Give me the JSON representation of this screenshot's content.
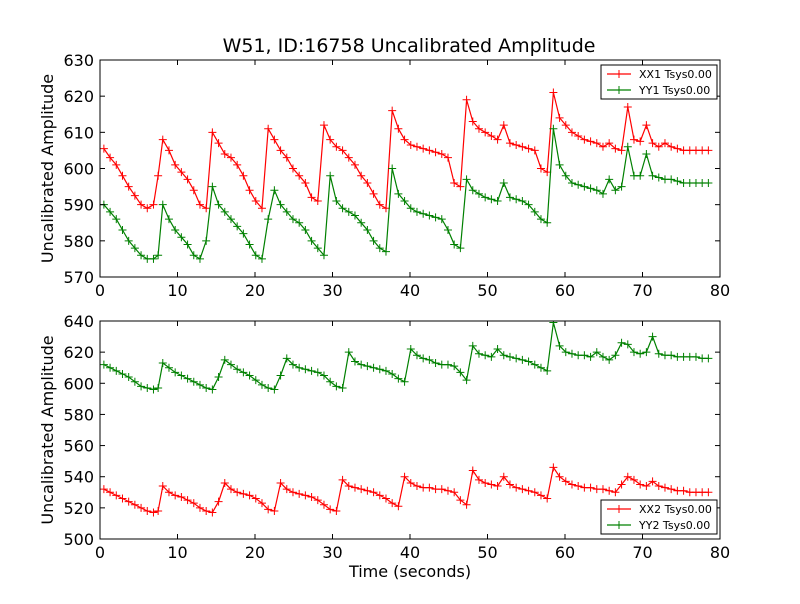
{
  "figure": {
    "title": "W51, ID:16758 Uncalibrated Amplitude"
  },
  "colors": {
    "red": "#ff0000",
    "green": "#008000",
    "axes": "#000000",
    "background": "#ffffff"
  },
  "chart_data": [
    {
      "type": "line",
      "title": "W51, ID:16758 Uncalibrated Amplitude",
      "xlabel": "",
      "ylabel": "Uncalibrated Amplitude",
      "xlim": [
        0,
        80
      ],
      "ylim": [
        570,
        630
      ],
      "xticks": [
        "0",
        "10",
        "20",
        "30",
        "40",
        "50",
        "60",
        "70",
        "80"
      ],
      "yticks": [
        "570",
        "580",
        "590",
        "600",
        "610",
        "620",
        "630"
      ],
      "grid": false,
      "legend": "top-right",
      "marker": "+",
      "series": [
        {
          "name": "XX1 Tsys0.00",
          "color": "#ff0000",
          "x": [
            0.5,
            1.3,
            2.1,
            2.9,
            3.7,
            4.5,
            5.3,
            6.1,
            6.9,
            7.5,
            8.1,
            8.9,
            9.7,
            10.5,
            11.3,
            12.1,
            12.9,
            13.7,
            14.5,
            15.3,
            16.1,
            16.9,
            17.7,
            18.5,
            19.3,
            20.1,
            20.9,
            21.7,
            22.5,
            23.3,
            24.1,
            24.9,
            25.7,
            26.5,
            27.3,
            28.1,
            28.9,
            29.7,
            30.5,
            31.3,
            32.1,
            32.9,
            33.7,
            34.5,
            35.3,
            36.1,
            36.9,
            37.7,
            38.5,
            39.3,
            40.1,
            40.9,
            41.7,
            42.5,
            43.3,
            44.1,
            44.9,
            45.7,
            46.5,
            47.3,
            48.1,
            48.9,
            49.7,
            50.5,
            51.3,
            52.1,
            52.9,
            53.7,
            54.5,
            55.3,
            56.1,
            56.9,
            57.7,
            58.5,
            59.3,
            60.1,
            60.9,
            61.7,
            62.5,
            63.3,
            64.1,
            64.9,
            65.7,
            66.5,
            67.3,
            68.1,
            68.9,
            69.7,
            70.5,
            71.3,
            72.1,
            72.9,
            73.7,
            74.5,
            75.3,
            76.1,
            76.9,
            77.7,
            78.5
          ],
          "values": [
            605.5,
            603,
            601,
            598,
            595,
            592.5,
            590,
            589,
            590,
            598,
            608,
            605,
            601,
            599,
            597,
            594,
            590,
            589,
            610,
            607,
            604,
            603,
            601,
            598,
            594,
            591,
            589,
            611,
            608,
            605,
            603,
            600,
            598,
            596,
            592,
            591,
            612,
            608,
            606,
            605,
            603,
            601,
            598,
            596,
            593,
            590,
            589,
            616,
            611,
            608,
            606.5,
            606,
            605.5,
            605,
            604.5,
            604,
            603,
            596,
            595,
            619,
            613,
            611,
            610,
            609,
            608,
            612,
            607,
            606.5,
            606,
            605.5,
            605,
            600,
            599,
            621,
            614,
            612,
            610,
            609,
            608,
            607.5,
            607,
            606,
            607,
            605.5,
            605,
            617,
            608,
            607.5,
            612,
            607,
            606,
            607,
            606,
            605.5,
            605,
            605,
            605,
            605,
            605
          ]
        },
        {
          "name": "YY1 Tsys0.00",
          "color": "#008000",
          "x": [
            0.5,
            1.3,
            2.1,
            2.9,
            3.7,
            4.5,
            5.3,
            6.1,
            6.9,
            7.5,
            8.1,
            8.9,
            9.7,
            10.5,
            11.3,
            12.1,
            12.9,
            13.7,
            14.5,
            15.3,
            16.1,
            16.9,
            17.7,
            18.5,
            19.3,
            20.1,
            20.9,
            21.7,
            22.5,
            23.3,
            24.1,
            24.9,
            25.7,
            26.5,
            27.3,
            28.1,
            28.9,
            29.7,
            30.5,
            31.3,
            32.1,
            32.9,
            33.7,
            34.5,
            35.3,
            36.1,
            36.9,
            37.7,
            38.5,
            39.3,
            40.1,
            40.9,
            41.7,
            42.5,
            43.3,
            44.1,
            44.9,
            45.7,
            46.5,
            47.3,
            48.1,
            48.9,
            49.7,
            50.5,
            51.3,
            52.1,
            52.9,
            53.7,
            54.5,
            55.3,
            56.1,
            56.9,
            57.7,
            58.5,
            59.3,
            60.1,
            60.9,
            61.7,
            62.5,
            63.3,
            64.1,
            64.9,
            65.7,
            66.5,
            67.3,
            68.1,
            68.9,
            69.7,
            70.5,
            71.3,
            72.1,
            72.9,
            73.7,
            74.5,
            75.3,
            76.1,
            76.9,
            77.7,
            78.5
          ],
          "values": [
            590,
            588,
            586,
            583,
            580,
            578,
            576,
            575,
            575,
            576,
            590,
            586,
            583,
            581,
            579,
            576,
            575,
            580,
            595,
            590,
            588,
            586,
            584,
            582,
            579,
            576,
            575,
            586,
            594,
            590,
            588,
            586,
            585,
            583,
            580,
            578,
            576,
            598,
            591,
            589,
            588,
            587,
            585,
            583,
            580,
            578,
            577,
            600,
            593,
            591,
            589,
            588,
            587.5,
            587,
            586.5,
            586,
            583,
            579,
            578,
            597,
            594,
            593,
            592,
            591.5,
            591,
            596,
            592,
            591.5,
            591,
            590,
            588,
            586,
            585,
            611,
            601,
            598,
            596,
            595.5,
            595,
            594.5,
            594,
            593,
            597,
            594,
            595,
            606,
            598,
            598,
            604,
            598,
            597.5,
            597,
            597,
            596.5,
            596,
            596,
            596,
            596,
            596
          ]
        }
      ]
    },
    {
      "type": "line",
      "title": "",
      "xlabel": "Time (seconds)",
      "ylabel": "Uncalibrated Amplitude",
      "xlim": [
        0,
        80
      ],
      "ylim": [
        500,
        640
      ],
      "xticks": [
        "0",
        "10",
        "20",
        "30",
        "40",
        "50",
        "60",
        "70",
        "80"
      ],
      "yticks": [
        "500",
        "520",
        "540",
        "560",
        "580",
        "600",
        "620",
        "640"
      ],
      "grid": false,
      "legend": "bottom-right",
      "marker": "+",
      "series": [
        {
          "name": "XX2 Tsys0.00",
          "color": "#ff0000",
          "x": [
            0.5,
            1.3,
            2.1,
            2.9,
            3.7,
            4.5,
            5.3,
            6.1,
            6.9,
            7.5,
            8.1,
            8.9,
            9.7,
            10.5,
            11.3,
            12.1,
            12.9,
            13.7,
            14.5,
            15.3,
            16.1,
            16.9,
            17.7,
            18.5,
            19.3,
            20.1,
            20.9,
            21.7,
            22.5,
            23.3,
            24.1,
            24.9,
            25.7,
            26.5,
            27.3,
            28.1,
            28.9,
            29.7,
            30.5,
            31.3,
            32.1,
            32.9,
            33.7,
            34.5,
            35.3,
            36.1,
            36.9,
            37.7,
            38.5,
            39.3,
            40.1,
            40.9,
            41.7,
            42.5,
            43.3,
            44.1,
            44.9,
            45.7,
            46.5,
            47.3,
            48.1,
            48.9,
            49.7,
            50.5,
            51.3,
            52.1,
            52.9,
            53.7,
            54.5,
            55.3,
            56.1,
            56.9,
            57.7,
            58.5,
            59.3,
            60.1,
            60.9,
            61.7,
            62.5,
            63.3,
            64.1,
            64.9,
            65.7,
            66.5,
            67.3,
            68.1,
            68.9,
            69.7,
            70.5,
            71.3,
            72.1,
            72.9,
            73.7,
            74.5,
            75.3,
            76.1,
            76.9,
            77.7,
            78.5
          ],
          "values": [
            532,
            530,
            528,
            526,
            524,
            522,
            520,
            518,
            517,
            518,
            534,
            530,
            528,
            527,
            525,
            523,
            520,
            518,
            517,
            524,
            536,
            532,
            530,
            529,
            528,
            526,
            523,
            519,
            518,
            536,
            532,
            530,
            529,
            528,
            527,
            525,
            522,
            519,
            518,
            538,
            534,
            533,
            532,
            531,
            530,
            528,
            526,
            523,
            521,
            540,
            536,
            534,
            533,
            533,
            532,
            532,
            531,
            530,
            525,
            522,
            544,
            538,
            536,
            535,
            534,
            540,
            535,
            533,
            532,
            531,
            530,
            528,
            526,
            546,
            540,
            537,
            535,
            534,
            533,
            533,
            532,
            532,
            531,
            530,
            535,
            540,
            538,
            535,
            534,
            537,
            534,
            533,
            532,
            531,
            531,
            530,
            530,
            530,
            530
          ]
        },
        {
          "name": "YY2 Tsys0.00",
          "color": "#008000",
          "x": [
            0.5,
            1.3,
            2.1,
            2.9,
            3.7,
            4.5,
            5.3,
            6.1,
            6.9,
            7.5,
            8.1,
            8.9,
            9.7,
            10.5,
            11.3,
            12.1,
            12.9,
            13.7,
            14.5,
            15.3,
            16.1,
            16.9,
            17.7,
            18.5,
            19.3,
            20.1,
            20.9,
            21.7,
            22.5,
            23.3,
            24.1,
            24.9,
            25.7,
            26.5,
            27.3,
            28.1,
            28.9,
            29.7,
            30.5,
            31.3,
            32.1,
            32.9,
            33.7,
            34.5,
            35.3,
            36.1,
            36.9,
            37.7,
            38.5,
            39.3,
            40.1,
            40.9,
            41.7,
            42.5,
            43.3,
            44.1,
            44.9,
            45.7,
            46.5,
            47.3,
            48.1,
            48.9,
            49.7,
            50.5,
            51.3,
            52.1,
            52.9,
            53.7,
            54.5,
            55.3,
            56.1,
            56.9,
            57.7,
            58.5,
            59.3,
            60.1,
            60.9,
            61.7,
            62.5,
            63.3,
            64.1,
            64.9,
            65.7,
            66.5,
            67.3,
            68.1,
            68.9,
            69.7,
            70.5,
            71.3,
            72.1,
            72.9,
            73.7,
            74.5,
            75.3,
            76.1,
            76.9,
            77.7,
            78.5
          ],
          "values": [
            612,
            610,
            608,
            606,
            604,
            601,
            598,
            597,
            596,
            597,
            613,
            610,
            607,
            605,
            603,
            601,
            599,
            597,
            596,
            604,
            615,
            612,
            609,
            607,
            605,
            602,
            599,
            597,
            596,
            605,
            616,
            612,
            610,
            609,
            608,
            607,
            605,
            601,
            598,
            597,
            620,
            614,
            612,
            611,
            610,
            609,
            608,
            606,
            603,
            601,
            622,
            618,
            616,
            615,
            613,
            612,
            612,
            611,
            607,
            602,
            624,
            619,
            618,
            617,
            622,
            618,
            617,
            616,
            615,
            614,
            612,
            610,
            608,
            639,
            624,
            620,
            619,
            618,
            618,
            617,
            620,
            617,
            615,
            618,
            626,
            625,
            620,
            619,
            620,
            630,
            619,
            618,
            618,
            617,
            617,
            617,
            617,
            616,
            616
          ]
        }
      ]
    }
  ]
}
